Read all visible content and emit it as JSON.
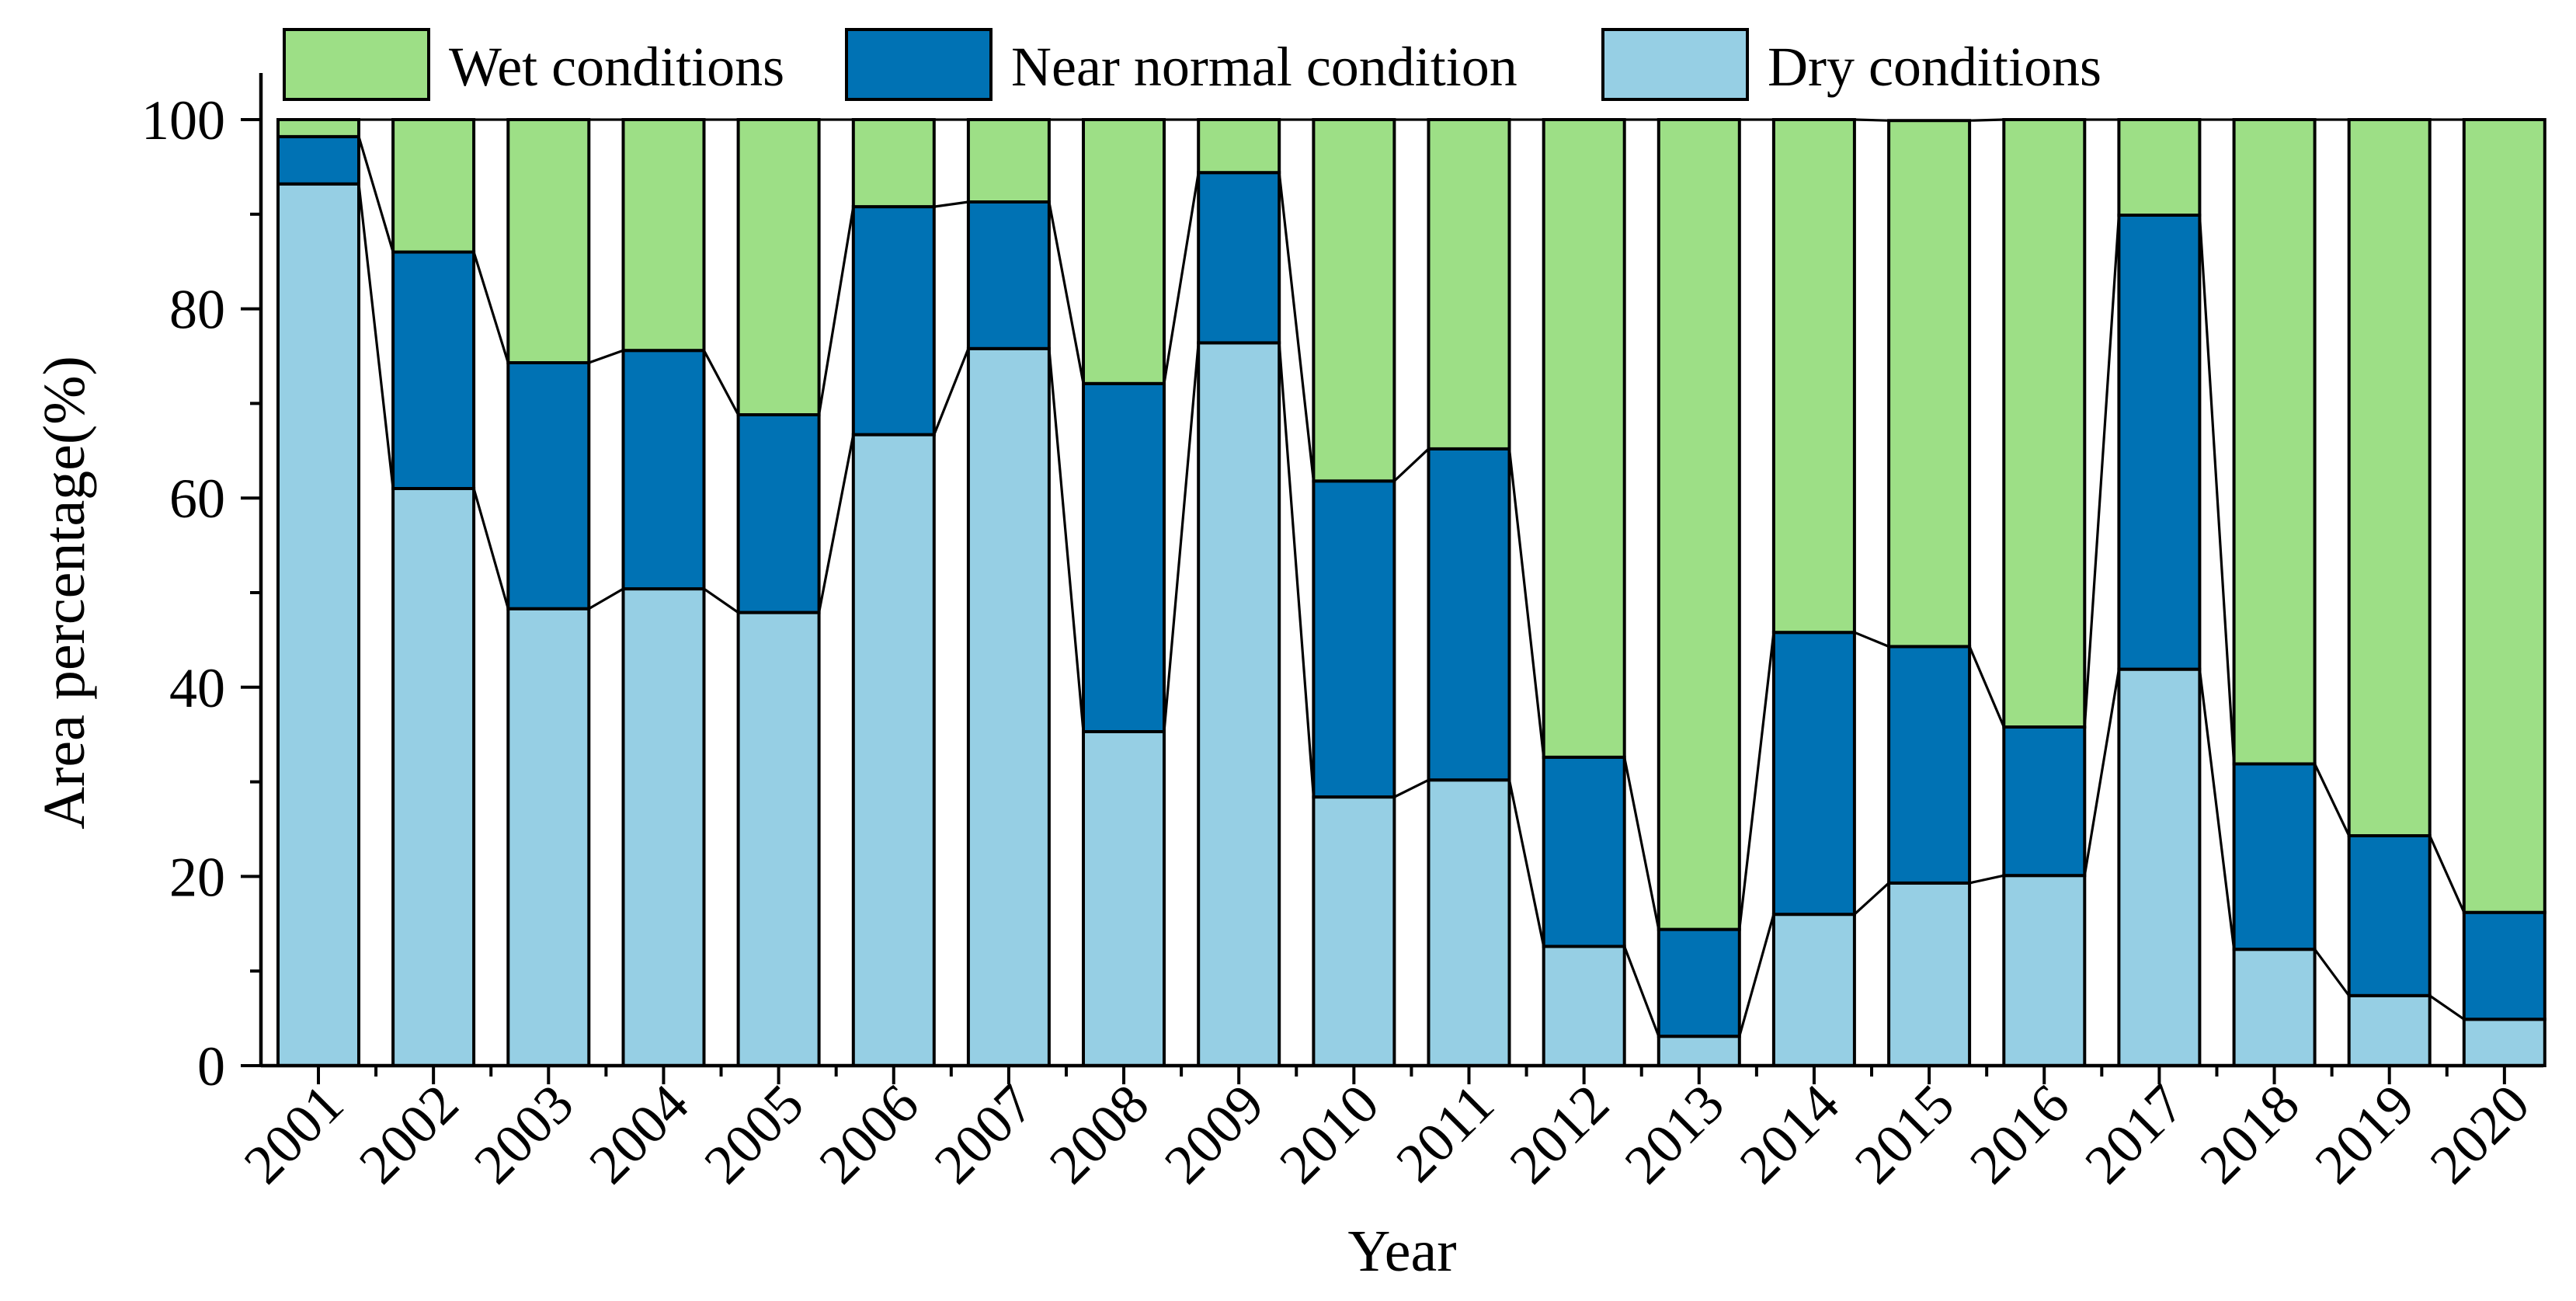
{
  "chart_data": {
    "type": "bar",
    "stacked": true,
    "title": "",
    "xlabel": "Year",
    "ylabel": "Area percentage(%)",
    "ylim": [
      0,
      100
    ],
    "yticks": [
      0,
      20,
      40,
      60,
      80,
      100
    ],
    "grid": false,
    "legend_position": "top",
    "categories": [
      "2001",
      "2002",
      "2003",
      "2004",
      "2005",
      "2006",
      "2007",
      "2008",
      "2009",
      "2010",
      "2011",
      "2012",
      "2013",
      "2014",
      "2015",
      "2016",
      "2017",
      "2018",
      "2019",
      "2020"
    ],
    "series": [
      {
        "name": "Dry conditions",
        "color": "#96cfe4",
        "values": [
          93.2,
          61.0,
          48.3,
          50.4,
          47.9,
          66.7,
          75.8,
          35.3,
          76.4,
          28.4,
          30.2,
          12.6,
          3.1,
          16.0,
          19.3,
          20.1,
          41.9,
          12.3,
          7.4,
          4.9
        ]
      },
      {
        "name": "Near normal condition",
        "color": "#0072b4",
        "values": [
          5.0,
          25.0,
          26.0,
          25.2,
          20.9,
          24.1,
          15.5,
          36.8,
          18.0,
          33.4,
          35.0,
          20.0,
          11.3,
          29.8,
          25.0,
          15.7,
          48.0,
          19.6,
          16.9,
          11.3
        ]
      },
      {
        "name": "Wet conditions",
        "color": "#9ddf86",
        "values": [
          1.8,
          14.0,
          25.7,
          24.4,
          31.2,
          9.2,
          8.7,
          27.9,
          5.6,
          38.2,
          34.8,
          67.4,
          85.6,
          54.2,
          55.6,
          64.2,
          10.1,
          68.1,
          75.7,
          83.8
        ]
      }
    ],
    "legend_order": [
      "Wet conditions",
      "Near normal condition",
      "Dry conditions"
    ]
  }
}
